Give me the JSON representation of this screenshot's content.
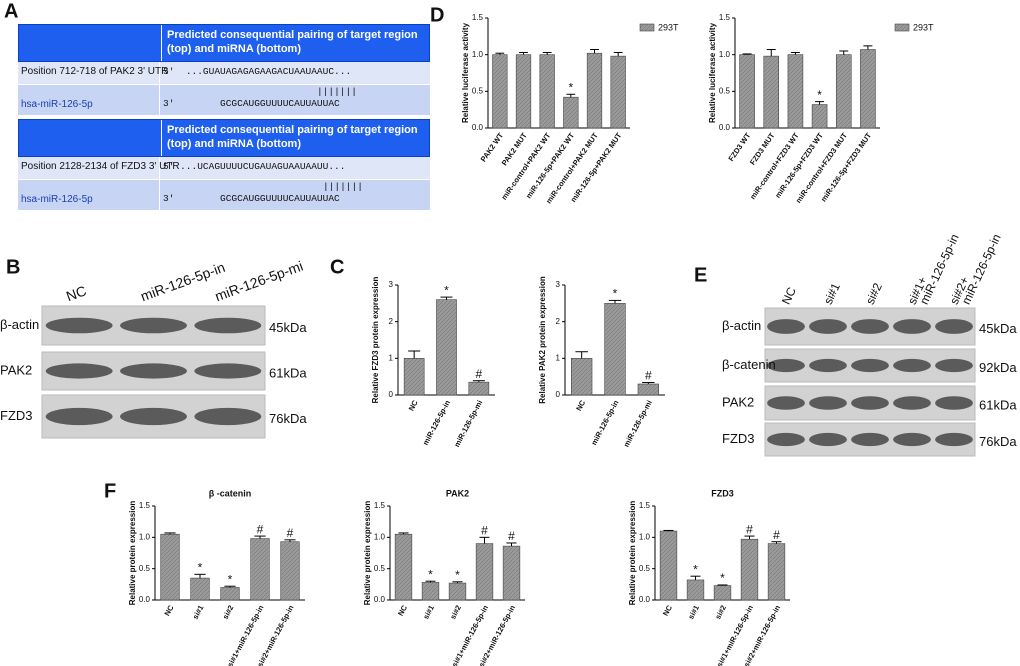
{
  "panel_letters": [
    "A",
    "B",
    "C",
    "D",
    "E",
    "F"
  ],
  "table_a": [
    {
      "header": "Predicted consequential pairing of target region (top) and miRNA (bottom)",
      "target_label": "Position 712-718 of PAK2 3' UTR",
      "target_end": "5'",
      "target_seq": "...GUAUAGAGAGAAGACUAAUAAUC...",
      "pairing": "|||||||",
      "mirna_label": "hsa-miR-126-5p",
      "mirna_end": "3'",
      "mirna_seq": "GCGCAUGGUUUUCAUUAUUAC"
    },
    {
      "header": "Predicted consequential pairing of target region (top) and miRNA (bottom)",
      "target_label": "Position 2128-2134 of FZD3 3' UTR",
      "target_end": "5'",
      "target_seq": "...UCAGUUUUCUGAUAGUAAUAAUU...",
      "pairing": "|||||||",
      "mirna_label": "hsa-miR-126-5p",
      "mirna_end": "3'",
      "mirna_seq": "GCGCAUGGUUUUCAUUAUUAC"
    }
  ],
  "blot_b": {
    "lanes": [
      "NC",
      "miR-126-5p-in",
      "miR-126-5p-mi"
    ],
    "rows": [
      "β-actin",
      "PAK2",
      "FZD3"
    ],
    "sizes": [
      "45kDa",
      "61kDa",
      "76kDa"
    ]
  },
  "blot_e": {
    "lanes": [
      [
        "NC"
      ],
      [
        "si#1"
      ],
      [
        "si#2"
      ],
      [
        "si#1+",
        "miR-126-5p-in"
      ],
      [
        "si#2+",
        "miR-126-5p-in"
      ]
    ],
    "rows": [
      "β-actin",
      "β-catenin",
      "PAK2",
      "FZD3"
    ],
    "sizes": [
      "45kDa",
      "92kDa",
      "61kDa",
      "76kDa"
    ]
  },
  "chart_data": [
    {
      "type": "bar",
      "ylabel": "Relative luciferase activity",
      "categories": [
        "PAK2 WT",
        "PAK2 MUT",
        "miR-control+PAK2 WT",
        "miR-126-5p+PAK2 WT",
        "miR-control+PAK2 MUT",
        "miR-126-5p+PAK2 MUT"
      ],
      "series": [
        {
          "name": "293T",
          "color": "#9a9a9a",
          "values": [
            1.0,
            1.0,
            1.0,
            0.42,
            1.02,
            0.98
          ],
          "errors": [
            0.02,
            0.03,
            0.03,
            0.04,
            0.05,
            0.05
          ]
        }
      ],
      "annotations": [
        null,
        null,
        null,
        "*",
        null,
        null
      ],
      "ylim": [
        0,
        1.5
      ],
      "yticks": [
        {
          "value": 0,
          "label": "0.0"
        },
        {
          "value": 0.5,
          "label": "0.5"
        },
        {
          "value": 1,
          "label": "1.0"
        },
        {
          "value": 1.5,
          "label": "1.5"
        }
      ],
      "legend": "right"
    },
    {
      "type": "bar",
      "ylabel": "Relative luciferase activity",
      "categories": [
        "FZD3 WT",
        "FZD3 MUT",
        "miR-control+FZD3 WT",
        "miR-126-5p+FZD3 WT",
        "miR-control+FZD3 MUT",
        "miR-126-5p+FZD3 MUT"
      ],
      "series": [
        {
          "name": "293T",
          "color": "#9a9a9a",
          "values": [
            1.0,
            0.98,
            1.0,
            0.32,
            1.0,
            1.07
          ],
          "errors": [
            0.01,
            0.09,
            0.03,
            0.04,
            0.05,
            0.05
          ]
        }
      ],
      "annotations": [
        null,
        null,
        null,
        "*",
        null,
        null
      ],
      "ylim": [
        0,
        1.5
      ],
      "yticks": [
        {
          "value": 0,
          "label": "0.0"
        },
        {
          "value": 0.5,
          "label": "0.5"
        },
        {
          "value": 1,
          "label": "1.0"
        },
        {
          "value": 1.5,
          "label": "1.5"
        }
      ],
      "legend": "right"
    },
    {
      "type": "bar",
      "ylabel": "Relative FZD3 protein expression",
      "categories": [
        "NC",
        "miR-126-5p-in",
        "miR-126-5p-mi"
      ],
      "values": [
        1.0,
        2.6,
        0.35
      ],
      "errors": [
        0.2,
        0.07,
        0.04
      ],
      "color": "#9a9a9a",
      "annotations": [
        null,
        "*",
        "#"
      ],
      "ylim": [
        0,
        3
      ],
      "yticks": [
        0,
        1,
        2,
        3
      ]
    },
    {
      "type": "bar",
      "ylabel": "Relative PAK2 protein expression",
      "categories": [
        "NC",
        "miR-126-5p-in",
        "miR-126-5p-mi"
      ],
      "values": [
        1.0,
        2.5,
        0.3
      ],
      "errors": [
        0.18,
        0.08,
        0.04
      ],
      "color": "#9a9a9a",
      "annotations": [
        null,
        "*",
        "#"
      ],
      "ylim": [
        0,
        3
      ],
      "yticks": [
        0,
        1,
        2,
        3
      ]
    },
    {
      "type": "bar",
      "title": "β -catenin",
      "ylabel": "Relative protein expression",
      "categories": [
        "NC",
        "si#1",
        "si#2",
        "si#1+miR-126-5p-in",
        "si#2+miR-126-5p-in"
      ],
      "values": [
        1.05,
        0.35,
        0.2,
        0.98,
        0.93
      ],
      "errors": [
        0.02,
        0.06,
        0.02,
        0.04,
        0.03
      ],
      "color": "#9a9a9a",
      "annotations": [
        null,
        "*",
        "*",
        "#",
        "#"
      ],
      "ylim": [
        0,
        1.5
      ],
      "yticks": [
        {
          "value": 0,
          "label": "0.0"
        },
        {
          "value": 0.5,
          "label": "0.5"
        },
        {
          "value": 1,
          "label": "1.0"
        },
        {
          "value": 1.5,
          "label": "1.5"
        }
      ]
    },
    {
      "type": "bar",
      "title": "PAK2",
      "ylabel": "Relative protein expression",
      "categories": [
        "NC",
        "si#1",
        "si#2",
        "si#1+miR-126-5p-in",
        "si#2+miR-126-5p-in"
      ],
      "values": [
        1.05,
        0.28,
        0.27,
        0.9,
        0.86
      ],
      "errors": [
        0.02,
        0.02,
        0.02,
        0.1,
        0.05
      ],
      "color": "#9a9a9a",
      "annotations": [
        null,
        "*",
        "*",
        "#",
        "#"
      ],
      "ylim": [
        0,
        1.5
      ],
      "yticks": [
        {
          "value": 0,
          "label": "0.0"
        },
        {
          "value": 0.5,
          "label": "0.5"
        },
        {
          "value": 1,
          "label": "1.0"
        },
        {
          "value": 1.5,
          "label": "1.5"
        }
      ]
    },
    {
      "type": "bar",
      "title": "FZD3",
      "ylabel": "Relative protein expression",
      "categories": [
        "NC",
        "si#1",
        "si#2",
        "si#1+miR-126-5p-in",
        "si#2+miR-126-5p-in"
      ],
      "values": [
        1.1,
        0.32,
        0.23,
        0.97,
        0.9
      ],
      "errors": [
        0.01,
        0.06,
        0.01,
        0.05,
        0.03
      ],
      "color": "#9a9a9a",
      "annotations": [
        null,
        "*",
        "*",
        "#",
        "#"
      ],
      "ylim": [
        0,
        1.5
      ],
      "yticks": [
        {
          "value": 0,
          "label": "0.0"
        },
        {
          "value": 0.5,
          "label": "0.5"
        },
        {
          "value": 1,
          "label": "1.0"
        },
        {
          "value": 1.5,
          "label": "1.5"
        }
      ]
    }
  ]
}
